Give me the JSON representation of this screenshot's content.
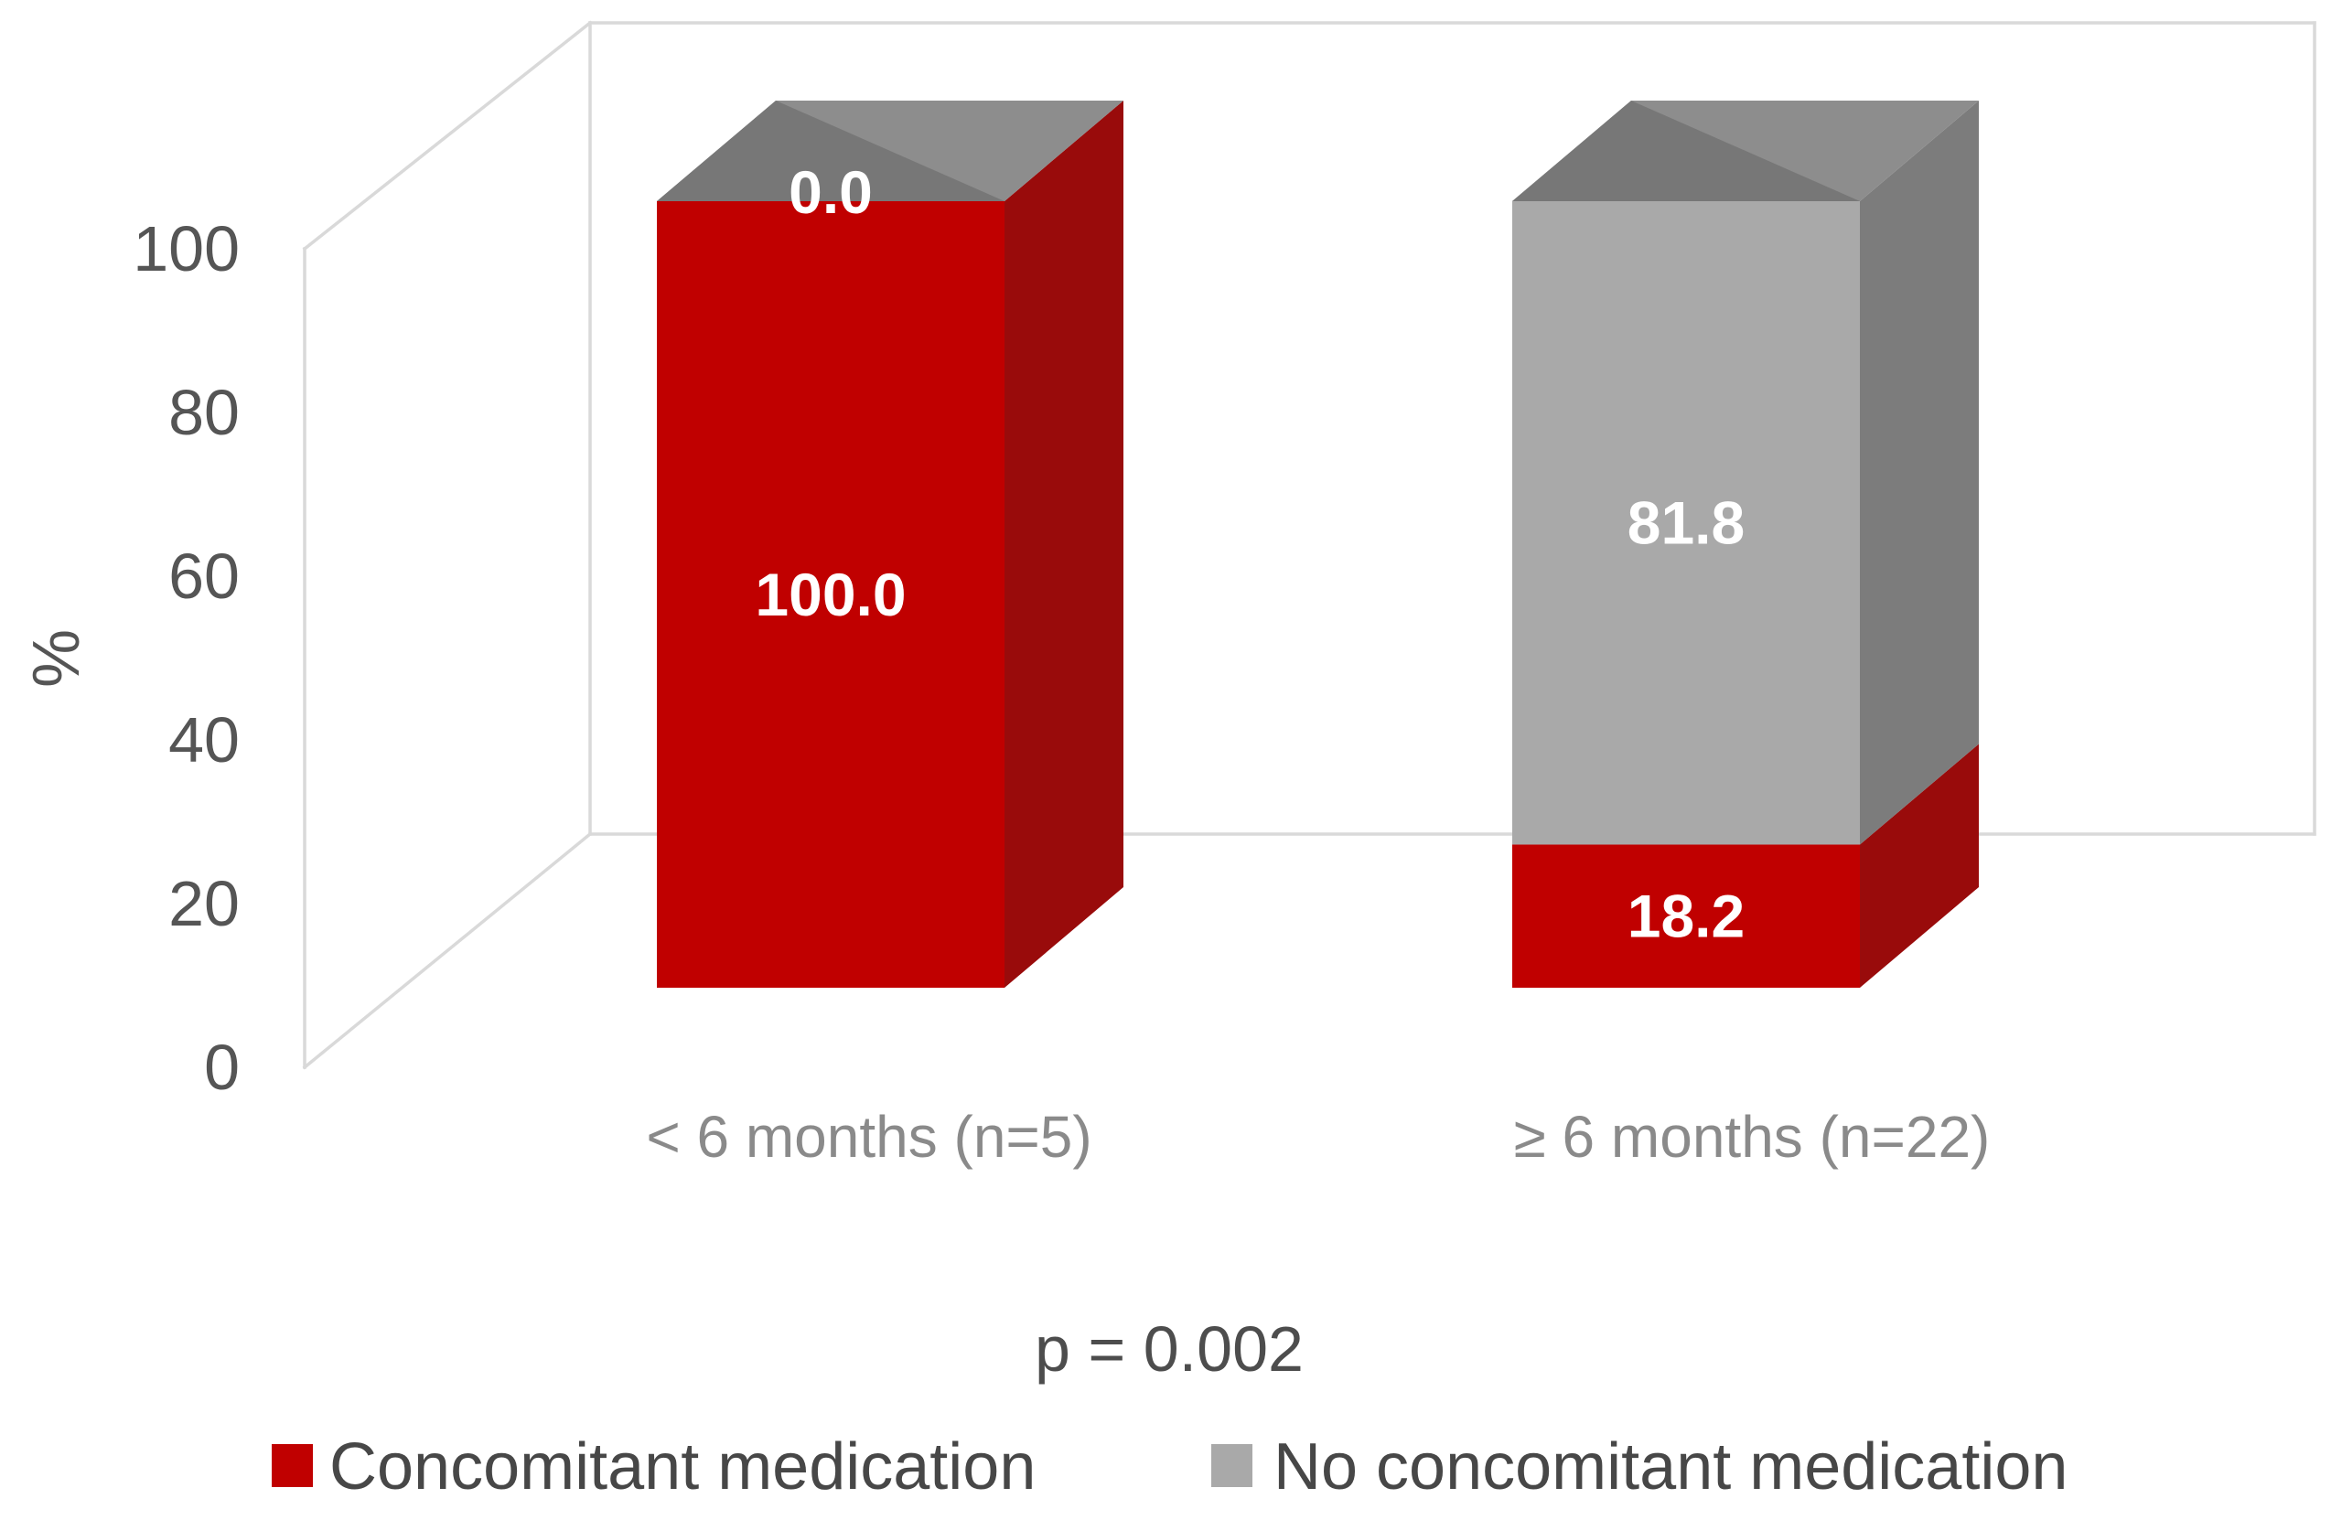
{
  "chart_data": {
    "type": "bar",
    "variant": "3d-stacked-column-100pct",
    "title": "",
    "categories": [
      "< 6 months (n=5)",
      "≥ 6 months (n=22)"
    ],
    "series": [
      {
        "name": "Concomitant medication",
        "color": "#C00000",
        "side_color": "#990B0B",
        "values": [
          100.0,
          18.2
        ]
      },
      {
        "name": "No concomitant medication",
        "color": "#A9A9A9",
        "side_color": "#7C7C7C",
        "top_dark": "#777777",
        "top_light": "#8D8D8D",
        "values": [
          0.0,
          81.8
        ]
      }
    ],
    "ylabel": "%",
    "yticks": [
      0,
      20,
      40,
      60,
      80,
      100
    ],
    "ylim": [
      0,
      100
    ],
    "data_label_decimals": 1,
    "annotation": "p = 0.002",
    "legend_position": "bottom",
    "grid": false
  },
  "colors": {
    "background": "#FFFFFF",
    "frame": "#D9D9D9",
    "tick_text": "#555555",
    "category_text": "#8A8A8A",
    "annotation_text": "#4D4D4D",
    "legend_text": "#474747",
    "data_label_text": "#FFFFFF"
  }
}
